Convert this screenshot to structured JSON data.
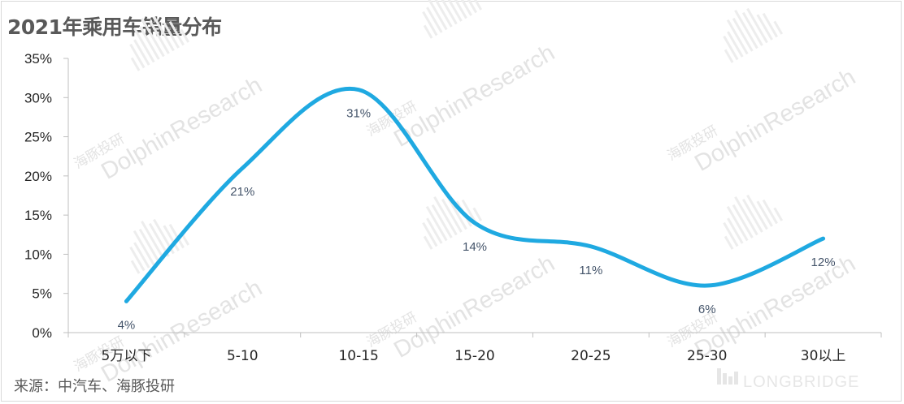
{
  "header": {
    "title": "2021年乘用车销量分布"
  },
  "footer": {
    "source": "来源：中汽车、海豚投研"
  },
  "watermark": {
    "brand_cn": "海豚投研",
    "brand_en": "DolphinResearch",
    "corner": "LONGBRIDGE"
  },
  "colors": {
    "line": "#1fa9e1",
    "axis": "#bfbfbf",
    "tick_text": "#262626",
    "label_text": "#44546a"
  },
  "chart_data": {
    "type": "line",
    "title": "2021年乘用车销量分布",
    "categories": [
      "5万以下",
      "5-10",
      "10-15",
      "15-20",
      "20-25",
      "25-30",
      "30以上"
    ],
    "values": [
      4,
      21,
      31,
      14,
      11,
      6,
      12
    ],
    "data_labels": [
      "4%",
      "21%",
      "31%",
      "14%",
      "11%",
      "6%",
      "12%"
    ],
    "ylim": [
      0,
      35
    ],
    "yticks": [
      0,
      5,
      10,
      15,
      20,
      25,
      30,
      35
    ],
    "ytick_labels": [
      "0%",
      "5%",
      "10%",
      "15%",
      "20%",
      "25%",
      "30%",
      "35%"
    ],
    "grid": false,
    "smooth": true,
    "legend": "none"
  }
}
